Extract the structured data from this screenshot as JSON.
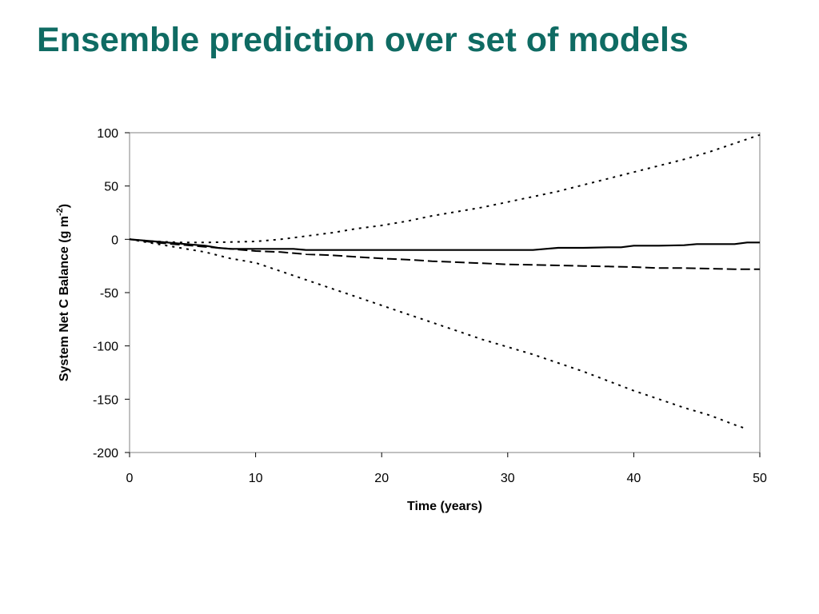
{
  "slide": {
    "title": "Ensemble prediction over set of models"
  },
  "chart_data": {
    "type": "line",
    "title": "",
    "xlabel": "Time (years)",
    "ylabel": {
      "text": "System Net C Balance (g m",
      "superscript": "-2",
      "suffix": ")"
    },
    "xlim": [
      0,
      50
    ],
    "ylim": [
      -200,
      100
    ],
    "xticks": [
      0,
      10,
      20,
      30,
      40,
      50
    ],
    "yticks": [
      100,
      50,
      0,
      -50,
      -100,
      -150,
      -200
    ],
    "grid": false,
    "legend": "none",
    "series": [
      {
        "style": "solid",
        "color": "#000000",
        "x": [
          0,
          2,
          4,
          6,
          7,
          8,
          10,
          12,
          13,
          14,
          16,
          18,
          20,
          22,
          24,
          26,
          28,
          30,
          32,
          33,
          34,
          36,
          38,
          39,
          40,
          42,
          44,
          45,
          46,
          48,
          49,
          50
        ],
        "y": [
          0,
          -2,
          -4,
          -6,
          -8,
          -9,
          -9,
          -9,
          -9,
          -10,
          -10,
          -10,
          -10,
          -10,
          -10,
          -10,
          -10,
          -10,
          -10,
          -9,
          -8,
          -8,
          -7.5,
          -7.5,
          -6,
          -6,
          -5.5,
          -4.5,
          -4.5,
          -4.5,
          -3,
          -3
        ]
      },
      {
        "style": "dashed",
        "color": "#000000",
        "x": [
          0,
          2,
          4,
          6,
          8,
          10,
          12,
          14,
          16,
          18,
          20,
          22,
          24,
          26,
          28,
          30,
          32,
          34,
          36,
          38,
          40,
          42,
          44,
          46,
          48,
          50
        ],
        "y": [
          0,
          -3,
          -5,
          -7,
          -9,
          -11,
          -12,
          -14,
          -15,
          -16.5,
          -18,
          -19,
          -20.5,
          -21.5,
          -22.5,
          -23.5,
          -24,
          -24.5,
          -25,
          -25.5,
          -26,
          -27,
          -27,
          -27.5,
          -28,
          -28
        ]
      },
      {
        "style": "dotted",
        "color": "#000000",
        "x": [
          0,
          2,
          4,
          6,
          8,
          10,
          12,
          14,
          16,
          18,
          20,
          22,
          24,
          26,
          28,
          30,
          32,
          34,
          36,
          38,
          40,
          42,
          44,
          46,
          48,
          50
        ],
        "y": [
          0,
          -2,
          -3,
          -3,
          -2.5,
          -2,
          0,
          3,
          6,
          10,
          13,
          17,
          22,
          26,
          30,
          35,
          40,
          45,
          51,
          57,
          63,
          69,
          75,
          82,
          90,
          98
        ]
      },
      {
        "style": "dotted",
        "color": "#000000",
        "x": [
          0,
          2,
          4,
          6,
          8,
          10,
          12,
          14,
          16,
          18,
          20,
          22,
          24,
          26,
          28,
          30,
          32,
          34,
          36,
          38,
          40,
          42,
          44,
          46,
          48,
          49
        ],
        "y": [
          0,
          -4,
          -8,
          -12,
          -18,
          -22,
          -30,
          -38,
          -46,
          -54,
          -62,
          -70,
          -78,
          -86,
          -94,
          -101,
          -108,
          -116,
          -124,
          -133,
          -142,
          -150,
          -158,
          -165,
          -174,
          -178
        ]
      }
    ]
  }
}
